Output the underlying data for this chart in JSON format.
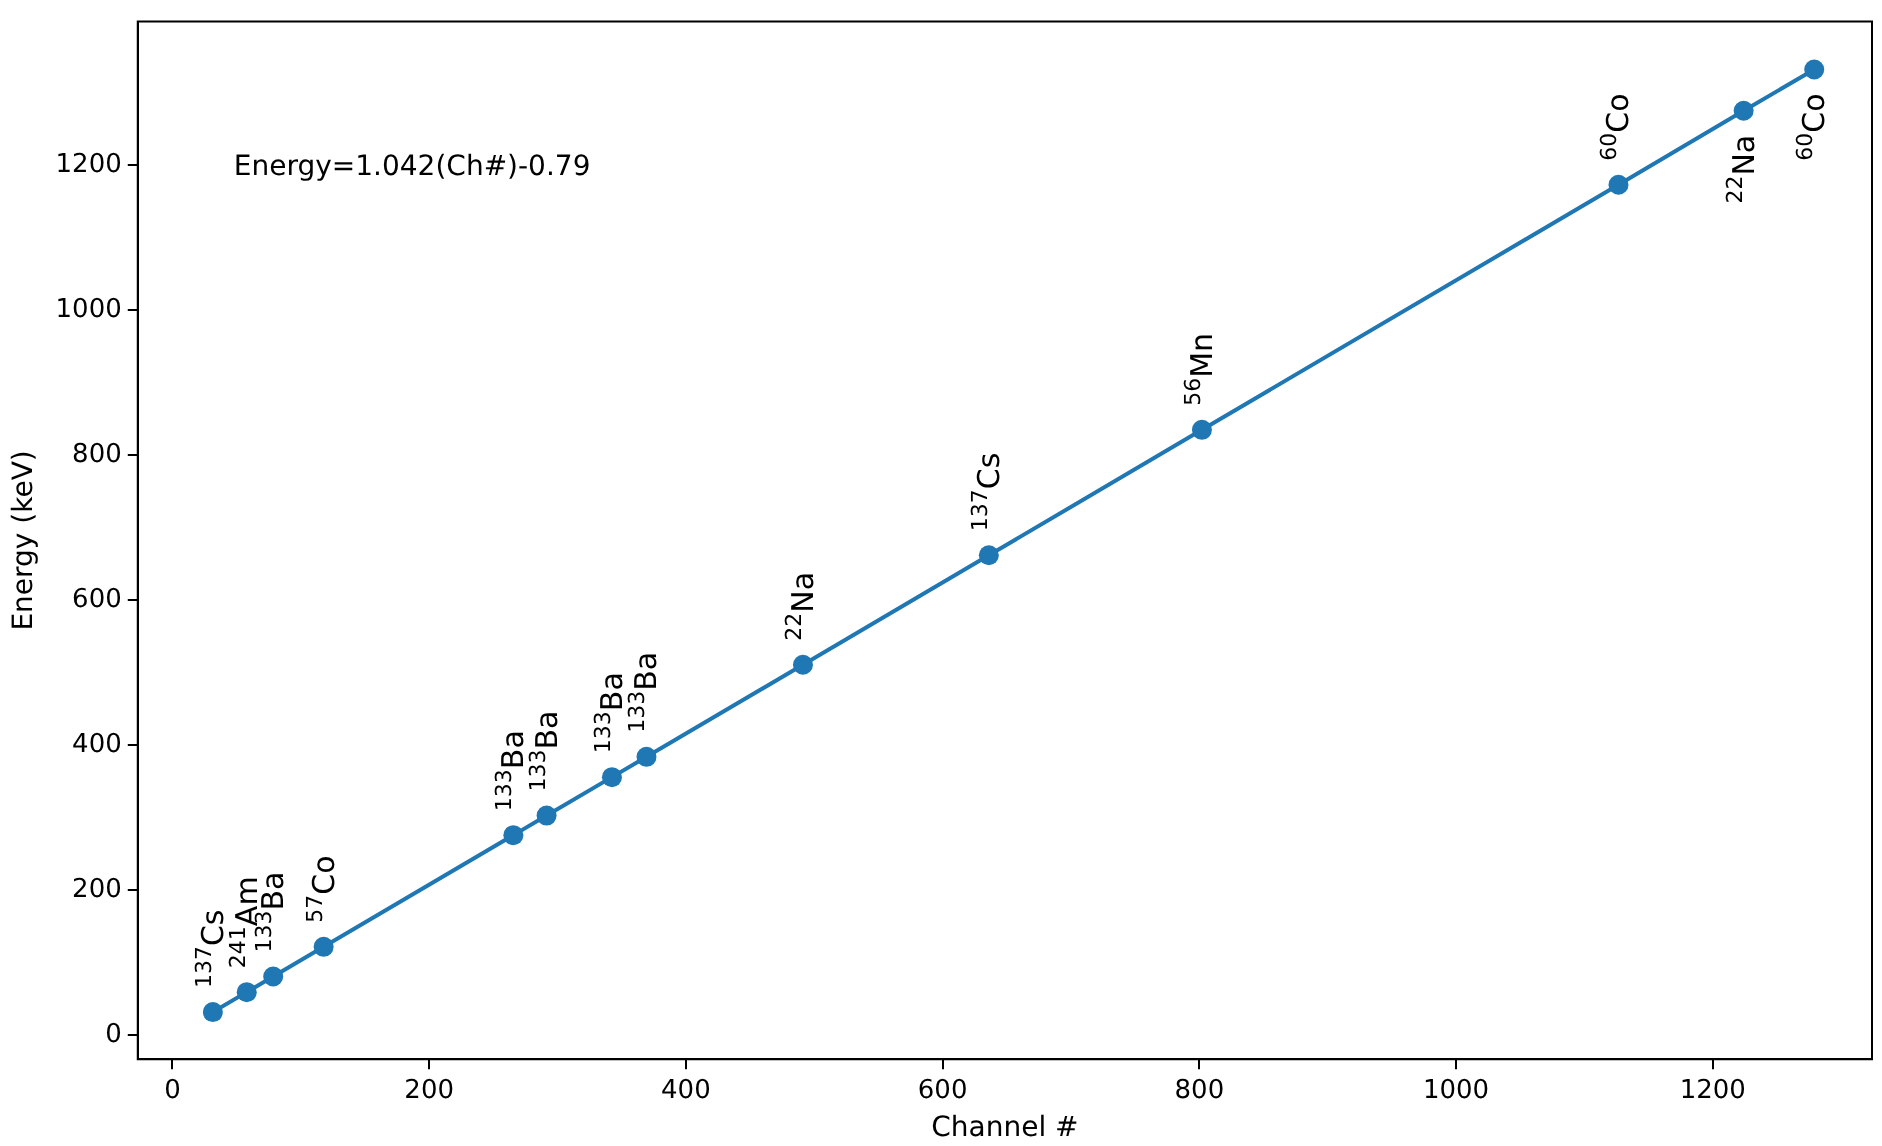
{
  "chart_data": {
    "type": "line",
    "xlabel": "Channel #",
    "ylabel": "Energy (keV)",
    "x": [
      31.5,
      57.9,
      78.5,
      117.8,
      265.6,
      291.5,
      342.4,
      369.3,
      491.2,
      636,
      802,
      1126.5,
      1224,
      1279
    ],
    "series": [
      {
        "color": "#1f77b4",
        "values": [
          32,
          59.5,
          81,
          122,
          276,
          303,
          356,
          384,
          511,
          662,
          835,
          1173,
          1275,
          1332
        ]
      }
    ],
    "xlim": [
      -27,
      1324
    ],
    "xticks": [
      0,
      200,
      400,
      600,
      800,
      1000,
      1200
    ],
    "ylim": [
      -33,
      1398
    ],
    "yticks": [
      0,
      200,
      400,
      600,
      800,
      1000,
      1200
    ],
    "grid": false,
    "legend": false,
    "marker": "circle",
    "line_style": "solid",
    "annotations": [
      "Energy=1.042(Ch#)-0.79",
      {
        "text": "$^{137}$Cs",
        "x": 31.5,
        "y": 32
      },
      {
        "text": "$^{241}$Am",
        "x": 57.9,
        "y": 59.5
      },
      {
        "text": "$^{133}$Ba",
        "x": 78.5,
        "y": 81
      },
      {
        "text": "$^{57}$Co",
        "x": 117.8,
        "y": 122
      },
      {
        "text": "$^{133}$Ba",
        "x": 265.6,
        "y": 276
      },
      {
        "text": "$^{133}$Ba",
        "x": 291.5,
        "y": 303
      },
      {
        "text": "$^{133}$Ba",
        "x": 342.4,
        "y": 356
      },
      {
        "text": "$^{133}$Ba",
        "x": 369.3,
        "y": 384
      },
      {
        "text": "$^{22}$Na",
        "x": 491.2,
        "y": 511
      },
      {
        "text": "$^{137}$Cs",
        "x": 636,
        "y": 662
      },
      {
        "text": "$^{56}$Mn",
        "x": 802,
        "y": 835
      },
      {
        "text": "$^{60}$Co",
        "x": 1126.5,
        "y": 1173
      },
      {
        "text": "$^{22}$Na",
        "x": 1224,
        "y": 1275
      },
      {
        "text": "$^{60}$Co",
        "x": 1279,
        "y": 1332
      }
    ]
  }
}
